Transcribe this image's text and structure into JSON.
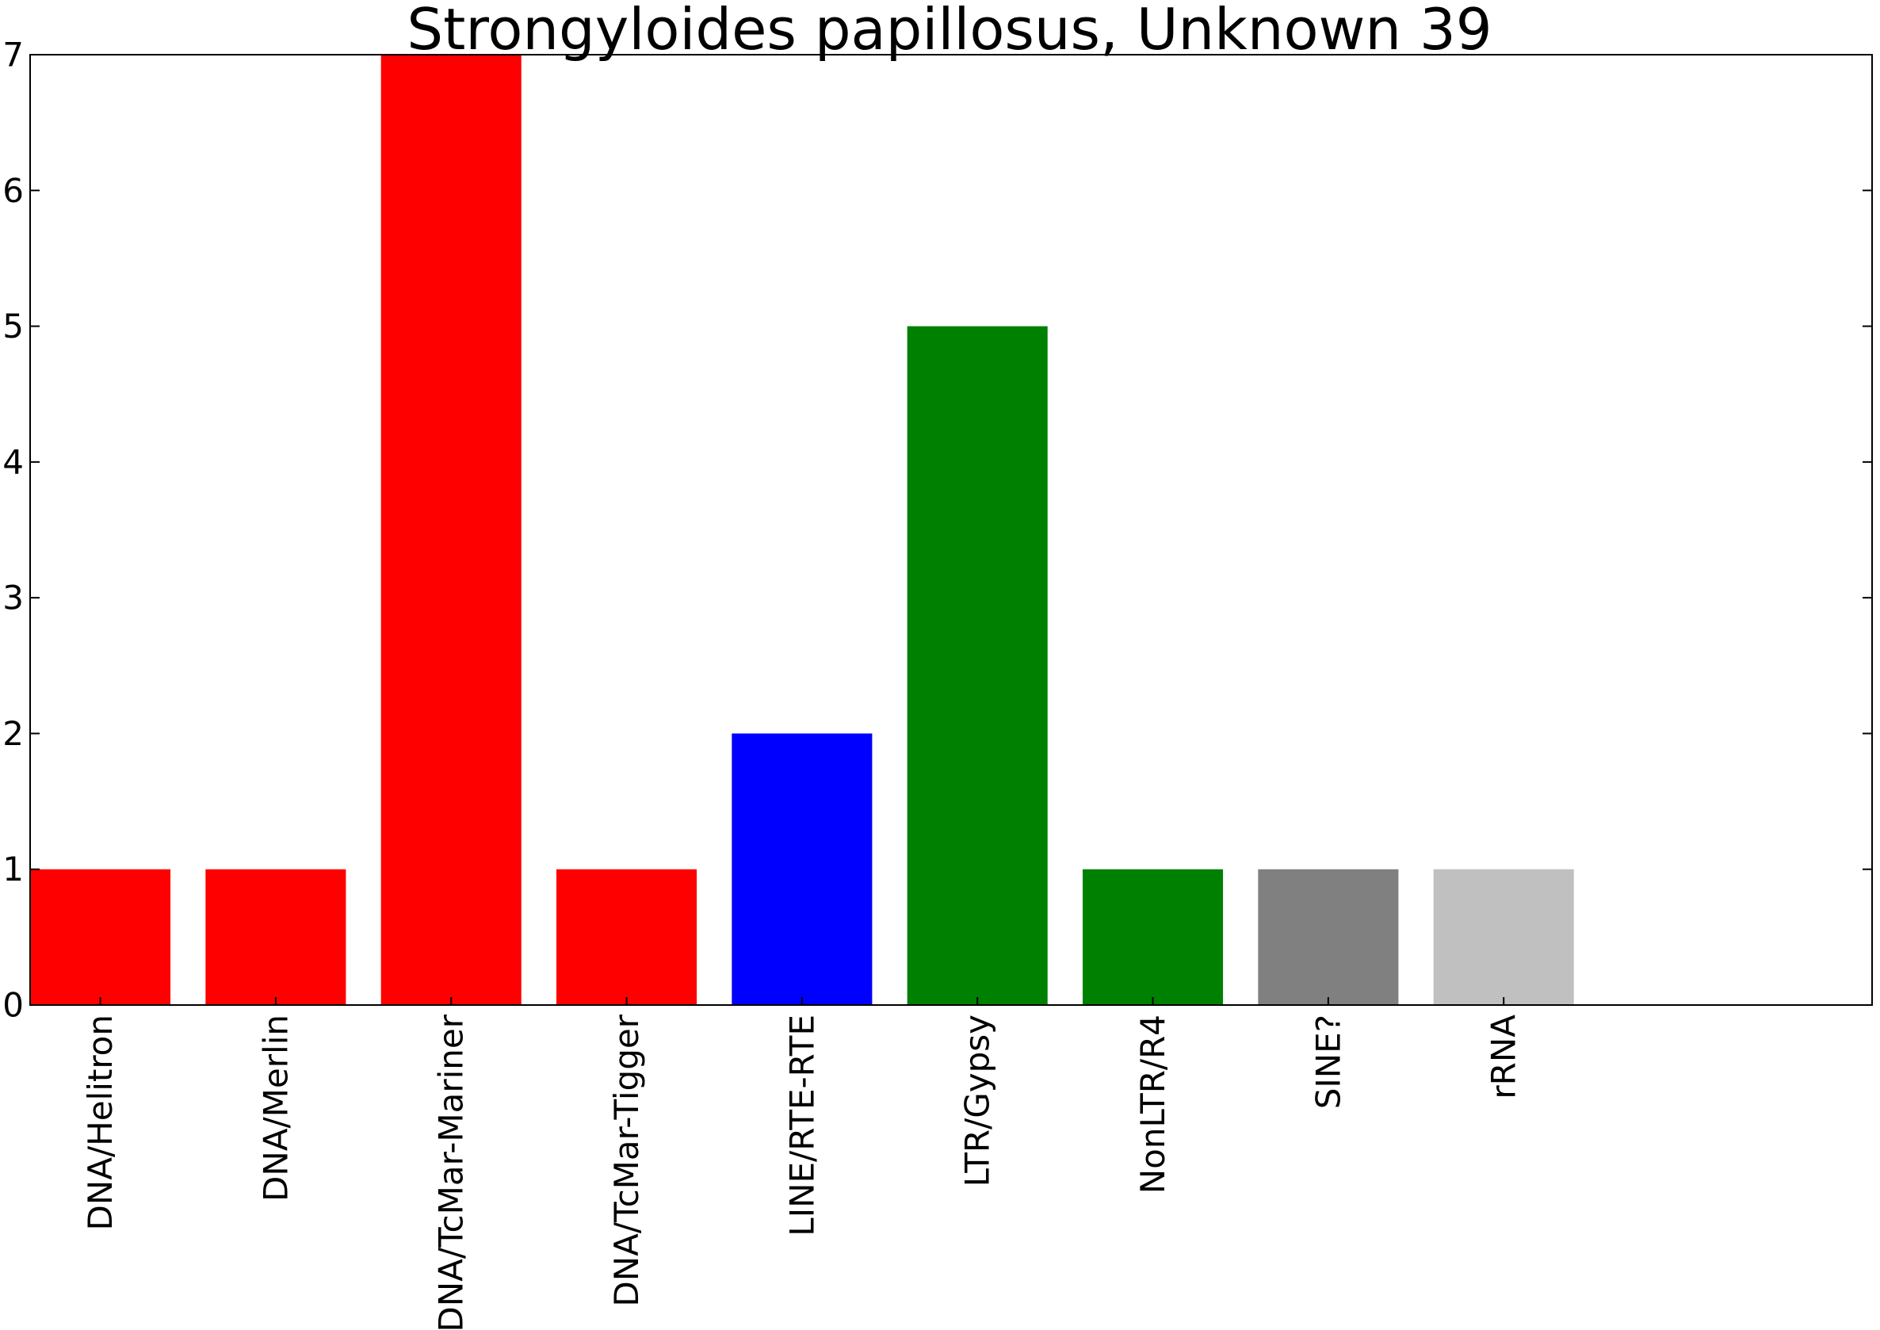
{
  "chart_data": {
    "type": "bar",
    "title": "Strongyloides papillosus, Unknown 39",
    "xlabel": "",
    "ylabel": "",
    "categories": [
      "DNA/Helitron",
      "DNA/Merlin",
      "DNA/TcMar-Mariner",
      "DNA/TcMar-Tigger",
      "LINE/RTE-RTE",
      "LTR/Gypsy",
      "NonLTR/R4",
      "SINE?",
      "rRNA"
    ],
    "values": [
      1,
      1,
      7,
      1,
      2,
      5,
      1,
      1,
      1
    ],
    "colors": [
      "#ff0000",
      "#ff0000",
      "#ff0000",
      "#ff0000",
      "#0000ff",
      "#008000",
      "#008000",
      "#808080",
      "#c0c0c0"
    ],
    "ylim": [
      0,
      7
    ],
    "xlim": [
      0,
      10.5
    ],
    "yticks": [
      0,
      1,
      2,
      3,
      4,
      5,
      6,
      7
    ],
    "grid": false,
    "legend": "none"
  }
}
